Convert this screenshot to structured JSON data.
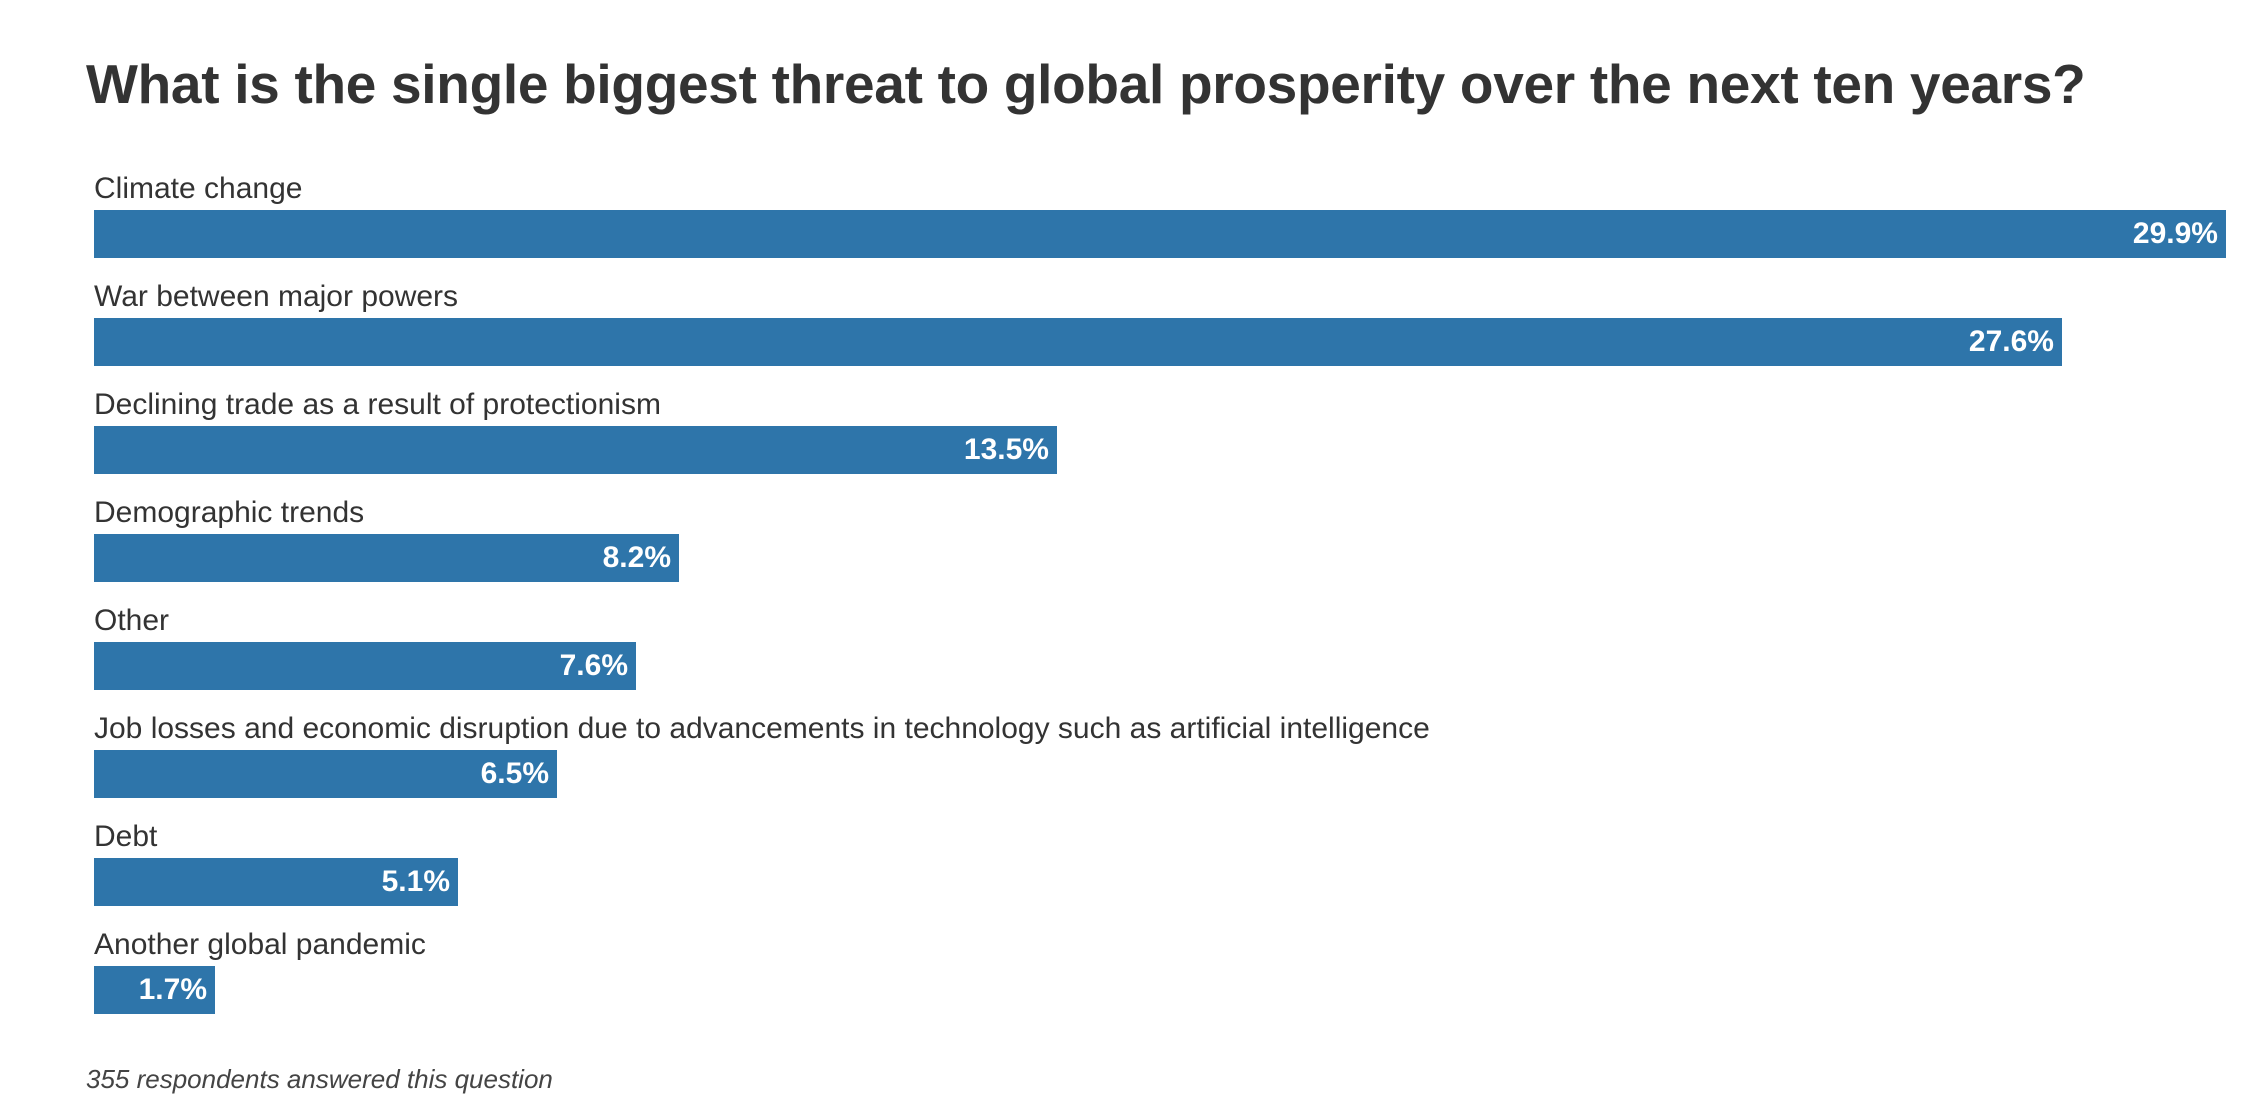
{
  "chart_data": {
    "type": "bar",
    "orientation": "horizontal",
    "title": "What is the single biggest threat to global prosperity over the next ten years?",
    "categories": [
      "Climate change",
      "War between major powers",
      "Declining trade as a result of protectionism",
      "Demographic trends",
      "Other",
      "Job losses and economic disruption due to advancements in technology such as artificial intelligence",
      "Debt",
      "Another global pandemic"
    ],
    "values": [
      29.9,
      27.6,
      13.5,
      8.2,
      7.6,
      6.5,
      5.1,
      1.7
    ],
    "value_labels": [
      "29.9%",
      "27.6%",
      "13.5%",
      "8.2%",
      "7.6%",
      "6.5%",
      "5.1%",
      "1.7%"
    ],
    "unit": "%",
    "xlim": [
      0,
      29.9
    ],
    "xlabel": "",
    "ylabel": "",
    "grid": false,
    "legend": "none",
    "bar_color": "#2e75aa",
    "footnote": "355 respondents answered this question"
  }
}
